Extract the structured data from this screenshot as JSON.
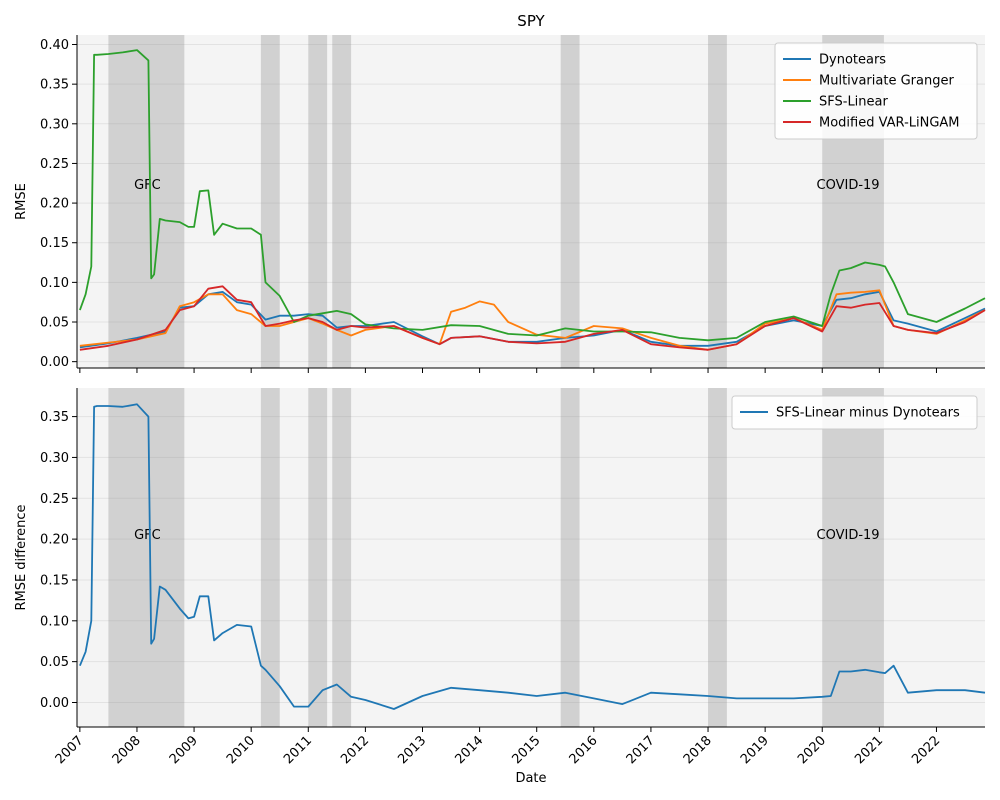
{
  "chart_data": [
    {
      "type": "line",
      "title": "SPY",
      "ylabel": "RMSE",
      "xlabel": "",
      "xlim": [
        2006.95,
        2022.85
      ],
      "ylim": [
        -0.008,
        0.412
      ],
      "yticks": [
        "0.00",
        "0.05",
        "0.10",
        "0.15",
        "0.20",
        "0.25",
        "0.30",
        "0.35",
        "0.40"
      ],
      "grid": "horizontal",
      "legend": "top-right",
      "shaded_periods": [
        [
          2007.5,
          2008.83
        ],
        [
          2010.17,
          2010.5
        ],
        [
          2011.0,
          2011.33
        ],
        [
          2011.42,
          2011.75
        ],
        [
          2015.42,
          2015.75
        ],
        [
          2018.0,
          2018.33
        ],
        [
          2020.0,
          2021.08
        ]
      ],
      "annotations": [
        {
          "text": "GFC",
          "x": 2007.95,
          "y": 0.218
        },
        {
          "text": "COVID-19",
          "x": 2019.9,
          "y": 0.218
        }
      ],
      "series": [
        {
          "name": "Dynotears",
          "color": "#1f77b4",
          "x": [
            2007.0,
            2007.5,
            2008.0,
            2008.5,
            2008.75,
            2009.0,
            2009.25,
            2009.5,
            2009.75,
            2010.0,
            2010.25,
            2010.5,
            2010.75,
            2011.0,
            2011.25,
            2011.5,
            2011.75,
            2012.0,
            2012.5,
            2013.0,
            2013.3,
            2013.5,
            2014.0,
            2014.5,
            2015.0,
            2015.5,
            2016.0,
            2016.5,
            2017.0,
            2017.5,
            2018.0,
            2018.5,
            2019.0,
            2019.5,
            2020.0,
            2020.25,
            2020.5,
            2020.75,
            2021.0,
            2021.25,
            2021.5,
            2022.0,
            2022.5,
            2022.85
          ],
          "values": [
            0.018,
            0.023,
            0.03,
            0.038,
            0.068,
            0.07,
            0.085,
            0.088,
            0.075,
            0.072,
            0.053,
            0.058,
            0.058,
            0.06,
            0.058,
            0.043,
            0.045,
            0.045,
            0.05,
            0.032,
            0.022,
            0.03,
            0.032,
            0.025,
            0.025,
            0.03,
            0.033,
            0.04,
            0.025,
            0.02,
            0.02,
            0.025,
            0.045,
            0.052,
            0.045,
            0.078,
            0.08,
            0.085,
            0.088,
            0.052,
            0.048,
            0.038,
            0.055,
            0.067
          ]
        },
        {
          "name": "Multivariate Granger",
          "color": "#ff7f0e",
          "x": [
            2007.0,
            2007.5,
            2008.0,
            2008.5,
            2008.75,
            2009.0,
            2009.25,
            2009.5,
            2009.75,
            2010.0,
            2010.25,
            2010.5,
            2010.75,
            2011.0,
            2011.25,
            2011.5,
            2011.75,
            2012.0,
            2012.5,
            2013.0,
            2013.3,
            2013.5,
            2013.75,
            2014.0,
            2014.25,
            2014.5,
            2015.0,
            2015.5,
            2016.0,
            2016.5,
            2017.0,
            2017.5,
            2018.0,
            2018.5,
            2019.0,
            2019.5,
            2020.0,
            2020.25,
            2020.5,
            2020.75,
            2021.0,
            2021.25,
            2021.5,
            2022.0,
            2022.5,
            2022.85
          ],
          "values": [
            0.02,
            0.024,
            0.028,
            0.036,
            0.07,
            0.075,
            0.085,
            0.085,
            0.065,
            0.06,
            0.045,
            0.045,
            0.05,
            0.055,
            0.048,
            0.04,
            0.033,
            0.04,
            0.045,
            0.03,
            0.022,
            0.063,
            0.068,
            0.076,
            0.072,
            0.05,
            0.034,
            0.03,
            0.045,
            0.042,
            0.03,
            0.02,
            0.015,
            0.022,
            0.048,
            0.055,
            0.04,
            0.085,
            0.087,
            0.088,
            0.09,
            0.045,
            0.04,
            0.035,
            0.052,
            0.065
          ]
        },
        {
          "name": "SFS-Linear",
          "color": "#2ca02c",
          "x": [
            2007.0,
            2007.1,
            2007.2,
            2007.25,
            2007.3,
            2007.5,
            2007.75,
            2008.0,
            2008.2,
            2008.25,
            2008.3,
            2008.4,
            2008.5,
            2008.75,
            2008.9,
            2009.0,
            2009.1,
            2009.25,
            2009.35,
            2009.5,
            2009.75,
            2010.0,
            2010.17,
            2010.25,
            2010.5,
            2010.75,
            2011.0,
            2011.25,
            2011.5,
            2011.75,
            2012.0,
            2012.5,
            2013.0,
            2013.5,
            2014.0,
            2014.5,
            2015.0,
            2015.5,
            2016.0,
            2016.5,
            2017.0,
            2017.5,
            2018.0,
            2018.5,
            2019.0,
            2019.5,
            2020.0,
            2020.15,
            2020.3,
            2020.5,
            2020.75,
            2021.0,
            2021.1,
            2021.25,
            2021.5,
            2022.0,
            2022.5,
            2022.85
          ],
          "values": [
            0.065,
            0.085,
            0.12,
            0.387,
            0.387,
            0.388,
            0.39,
            0.393,
            0.38,
            0.105,
            0.11,
            0.18,
            0.178,
            0.176,
            0.17,
            0.17,
            0.215,
            0.216,
            0.16,
            0.174,
            0.168,
            0.168,
            0.16,
            0.1,
            0.083,
            0.05,
            0.058,
            0.061,
            0.064,
            0.06,
            0.047,
            0.042,
            0.04,
            0.046,
            0.045,
            0.035,
            0.033,
            0.042,
            0.038,
            0.038,
            0.037,
            0.03,
            0.027,
            0.03,
            0.05,
            0.057,
            0.045,
            0.085,
            0.115,
            0.118,
            0.125,
            0.122,
            0.12,
            0.1,
            0.06,
            0.05,
            0.067,
            0.08
          ]
        },
        {
          "name": "Modified VAR-LiNGAM",
          "color": "#d62728",
          "x": [
            2007.0,
            2007.5,
            2008.0,
            2008.5,
            2008.75,
            2009.0,
            2009.25,
            2009.5,
            2009.75,
            2010.0,
            2010.25,
            2010.5,
            2010.75,
            2011.0,
            2011.25,
            2011.5,
            2011.75,
            2012.0,
            2012.5,
            2013.0,
            2013.3,
            2013.5,
            2014.0,
            2014.5,
            2015.0,
            2015.5,
            2016.0,
            2016.5,
            2017.0,
            2017.5,
            2018.0,
            2018.5,
            2019.0,
            2019.5,
            2020.0,
            2020.25,
            2020.5,
            2020.75,
            2021.0,
            2021.25,
            2021.5,
            2022.0,
            2022.5,
            2022.85
          ],
          "values": [
            0.015,
            0.02,
            0.028,
            0.04,
            0.065,
            0.07,
            0.092,
            0.095,
            0.078,
            0.075,
            0.045,
            0.048,
            0.052,
            0.055,
            0.05,
            0.04,
            0.045,
            0.043,
            0.045,
            0.03,
            0.022,
            0.03,
            0.032,
            0.025,
            0.023,
            0.025,
            0.035,
            0.04,
            0.022,
            0.018,
            0.015,
            0.022,
            0.045,
            0.055,
            0.038,
            0.07,
            0.068,
            0.072,
            0.074,
            0.045,
            0.04,
            0.036,
            0.05,
            0.065
          ]
        }
      ]
    },
    {
      "type": "line",
      "title": "",
      "ylabel": "RMSE difference",
      "xlabel": "Date",
      "xlim": [
        2006.95,
        2022.85
      ],
      "ylim": [
        -0.03,
        0.385
      ],
      "yticks": [
        "0.00",
        "0.05",
        "0.10",
        "0.15",
        "0.20",
        "0.25",
        "0.30",
        "0.35"
      ],
      "xtick_labels": [
        "2007",
        "2008",
        "2009",
        "2010",
        "2011",
        "2012",
        "2013",
        "2014",
        "2015",
        "2016",
        "2017",
        "2018",
        "2019",
        "2020",
        "2021",
        "2022"
      ],
      "grid": "horizontal",
      "legend": "top-right",
      "shaded_periods": [
        [
          2007.5,
          2008.83
        ],
        [
          2010.17,
          2010.5
        ],
        [
          2011.0,
          2011.33
        ],
        [
          2011.42,
          2011.75
        ],
        [
          2015.42,
          2015.75
        ],
        [
          2018.0,
          2018.33
        ],
        [
          2020.0,
          2021.08
        ]
      ],
      "annotations": [
        {
          "text": "GFC",
          "x": 2007.95,
          "y": 0.2
        },
        {
          "text": "COVID-19",
          "x": 2019.9,
          "y": 0.2
        }
      ],
      "series": [
        {
          "name": "SFS-Linear minus Dynotears",
          "color": "#1f77b4",
          "x": [
            2007.0,
            2007.1,
            2007.2,
            2007.25,
            2007.3,
            2007.5,
            2007.75,
            2008.0,
            2008.2,
            2008.25,
            2008.3,
            2008.4,
            2008.5,
            2008.75,
            2008.9,
            2009.0,
            2009.1,
            2009.25,
            2009.35,
            2009.5,
            2009.75,
            2010.0,
            2010.17,
            2010.25,
            2010.5,
            2010.75,
            2011.0,
            2011.25,
            2011.5,
            2011.75,
            2012.0,
            2012.5,
            2013.0,
            2013.5,
            2014.0,
            2014.5,
            2015.0,
            2015.5,
            2016.0,
            2016.5,
            2017.0,
            2017.5,
            2018.0,
            2018.5,
            2019.0,
            2019.5,
            2020.0,
            2020.15,
            2020.3,
            2020.5,
            2020.75,
            2021.0,
            2021.1,
            2021.25,
            2021.5,
            2022.0,
            2022.5,
            2022.85
          ],
          "values": [
            0.045,
            0.062,
            0.1,
            0.362,
            0.363,
            0.363,
            0.362,
            0.365,
            0.35,
            0.072,
            0.078,
            0.142,
            0.138,
            0.115,
            0.103,
            0.105,
            0.13,
            0.13,
            0.076,
            0.085,
            0.095,
            0.093,
            0.045,
            0.04,
            0.02,
            -0.005,
            -0.005,
            0.015,
            0.022,
            0.007,
            0.003,
            -0.008,
            0.008,
            0.018,
            0.015,
            0.012,
            0.008,
            0.012,
            0.005,
            -0.002,
            0.012,
            0.01,
            0.008,
            0.005,
            0.005,
            0.005,
            0.007,
            0.008,
            0.038,
            0.038,
            0.04,
            0.037,
            0.036,
            0.045,
            0.012,
            0.015,
            0.015,
            0.012
          ]
        }
      ]
    }
  ]
}
